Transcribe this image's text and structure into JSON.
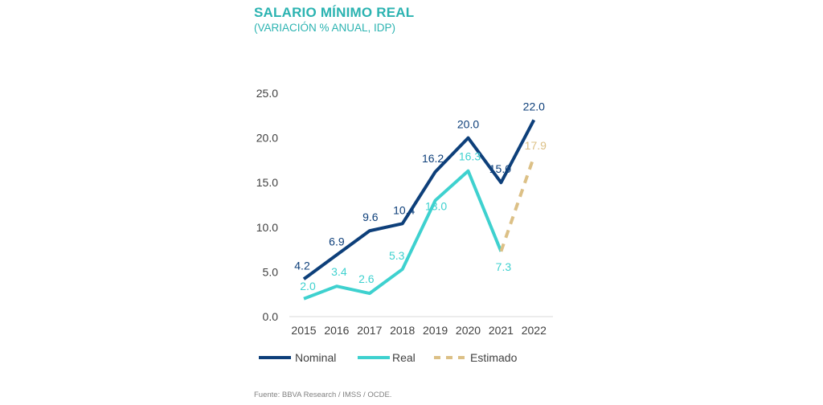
{
  "title": "SALARIO MÍNIMO REAL",
  "subtitle": "(VARIACIÓN % ANUAL, IDP)",
  "source": "Fuente: BBVA Research / IMSS / OCDE.",
  "colors": {
    "nominal": "#0d3f7a",
    "real": "#3ed1cf",
    "estimado": "#dcc086",
    "title": "#2bb3b1"
  },
  "chart_data": {
    "type": "line",
    "categories": [
      "2015",
      "2016",
      "2017",
      "2018",
      "2019",
      "2020",
      "2021",
      "2022"
    ],
    "ylim": [
      0,
      25
    ],
    "yticks": [
      "0.0",
      "5.0",
      "10.0",
      "15.0",
      "20.0",
      "25.0"
    ],
    "grid": false,
    "legend": "bottom",
    "series": [
      {
        "name": "Nominal",
        "style": "solid",
        "values": [
          4.2,
          6.9,
          9.6,
          10.4,
          16.2,
          20.0,
          15.0,
          22.0
        ],
        "labels": [
          "4.2",
          "6.9",
          "9.6",
          "10.4",
          "16.2",
          "20.0",
          "15.0",
          "22.0"
        ]
      },
      {
        "name": "Real",
        "style": "solid",
        "values": [
          2.0,
          3.4,
          2.6,
          5.3,
          13.0,
          16.3,
          7.3,
          null
        ],
        "labels": [
          "2.0",
          "3.4",
          "2.6",
          "5.3",
          "13.0",
          "16.3",
          "7.3",
          null
        ]
      },
      {
        "name": "Estimado",
        "style": "dashed",
        "values": [
          null,
          null,
          null,
          null,
          null,
          null,
          7.3,
          17.9
        ],
        "labels": [
          null,
          null,
          null,
          null,
          null,
          null,
          null,
          "17.9"
        ]
      }
    ]
  }
}
